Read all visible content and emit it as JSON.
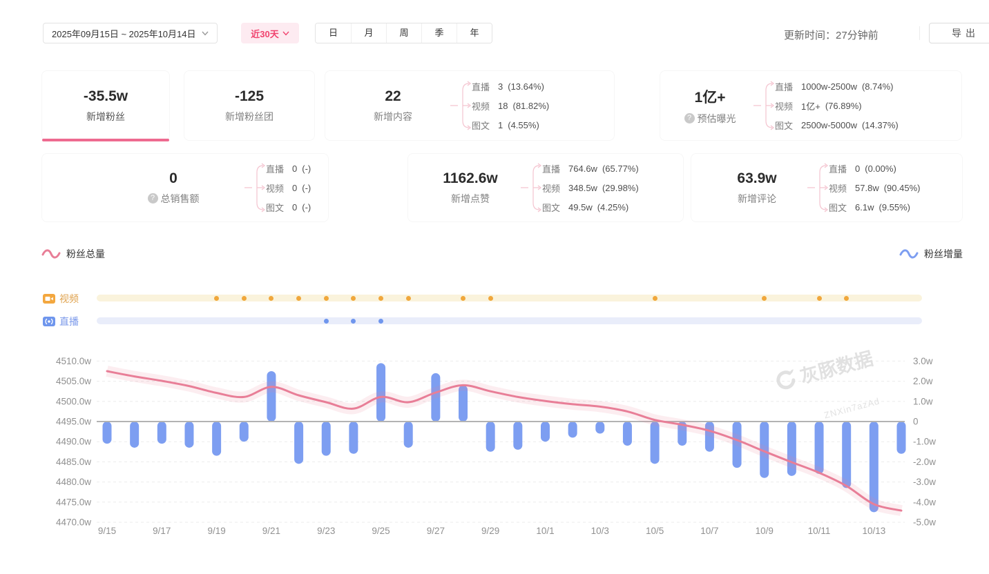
{
  "toolbar": {
    "date_range": "2025年09月15日 ~ 2025年10月14日",
    "quick_range": "近30天",
    "tabs": [
      "日",
      "月",
      "周",
      "季",
      "年"
    ],
    "updated": "更新时间：27分钟前",
    "export": "导出"
  },
  "stats": {
    "fans": {
      "value": "-35.5w",
      "label": "新增粉丝"
    },
    "fanclub": {
      "value": "-125",
      "label": "新增粉丝团"
    },
    "content": {
      "value": "22",
      "label": "新增内容",
      "breakdown": [
        {
          "n": "直播",
          "v": "3",
          "p": "(13.64%)"
        },
        {
          "n": "视频",
          "v": "18",
          "p": "(81.82%)"
        },
        {
          "n": "图文",
          "v": "1",
          "p": "(4.55%)"
        }
      ]
    },
    "exposure": {
      "value": "1亿+",
      "label": "预估曝光",
      "breakdown": [
        {
          "n": "直播",
          "v": "1000w-2500w",
          "p": "(8.74%)"
        },
        {
          "n": "视频",
          "v": "1亿+",
          "p": "(76.89%)"
        },
        {
          "n": "图文",
          "v": "2500w-5000w",
          "p": "(14.37%)"
        }
      ]
    },
    "sales": {
      "value": "0",
      "label": "总销售额",
      "breakdown": [
        {
          "n": "直播",
          "v": "0",
          "p": "(-)"
        },
        {
          "n": "视频",
          "v": "0",
          "p": "(-)"
        },
        {
          "n": "图文",
          "v": "0",
          "p": "(-)"
        }
      ]
    },
    "likes": {
      "value": "1162.6w",
      "label": "新增点赞",
      "breakdown": [
        {
          "n": "直播",
          "v": "764.6w",
          "p": "(65.77%)"
        },
        {
          "n": "视频",
          "v": "348.5w",
          "p": "(29.98%)"
        },
        {
          "n": "图文",
          "v": "49.5w",
          "p": "(4.25%)"
        }
      ]
    },
    "comments": {
      "value": "63.9w",
      "label": "新增评论",
      "breakdown": [
        {
          "n": "直播",
          "v": "0",
          "p": "(0.00%)"
        },
        {
          "n": "视频",
          "v": "57.8w",
          "p": "(90.45%)"
        },
        {
          "n": "图文",
          "v": "6.1w",
          "p": "(9.55%)"
        }
      ]
    }
  },
  "legend": {
    "total": "粉丝总量",
    "delta": "粉丝增量"
  },
  "timeline": {
    "video_label": "视频",
    "live_label": "直播"
  },
  "watermark": {
    "brand": "灰豚数据",
    "code": "ZNXin7azAd"
  },
  "chart_data": {
    "type": "combo",
    "x": [
      "9/15",
      "9/16",
      "9/17",
      "9/18",
      "9/19",
      "9/20",
      "9/21",
      "9/22",
      "9/23",
      "9/24",
      "9/25",
      "9/26",
      "9/27",
      "9/28",
      "9/29",
      "9/30",
      "10/1",
      "10/2",
      "10/3",
      "10/4",
      "10/5",
      "10/6",
      "10/7",
      "10/8",
      "10/9",
      "10/10",
      "10/11",
      "10/12",
      "10/13",
      "10/14"
    ],
    "x_axis_labels": [
      "9/15",
      "9/17",
      "9/19",
      "9/21",
      "9/23",
      "9/25",
      "9/27",
      "9/29",
      "10/1",
      "10/3",
      "10/5",
      "10/7",
      "10/9",
      "10/11",
      "10/13"
    ],
    "left_axis": {
      "title": "粉丝总量",
      "min": 4470,
      "max": 4510,
      "step": 5,
      "unit": "w",
      "labels": [
        "4510.0w",
        "4505.0w",
        "4500.0w",
        "4495.0w",
        "4490.0w",
        "4485.0w",
        "4480.0w",
        "4475.0w",
        "4470.0w"
      ]
    },
    "right_axis": {
      "title": "粉丝增量",
      "min": -5,
      "max": 3,
      "step": 1,
      "unit": "w",
      "labels": [
        "3.0w",
        "2.0w",
        "1.0w",
        "0",
        "-1.0w",
        "-2.0w",
        "-3.0w",
        "-4.0w",
        "-5.0w"
      ]
    },
    "series": [
      {
        "name": "粉丝总量",
        "type": "line",
        "axis": "left",
        "color": "#e87e97",
        "values": [
          4507.5,
          4506.2,
          4505.1,
          4503.8,
          4502.1,
          4501.1,
          4503.6,
          4501.5,
          4499.8,
          4498.2,
          4501.1,
          4499.8,
          4502.2,
          4504.0,
          4502.5,
          4501.1,
          4500.1,
          4499.3,
          4498.7,
          4497.5,
          4495.4,
          4494.2,
          4492.7,
          4490.4,
          4487.6,
          4484.9,
          4482.3,
          4479.0,
          4474.5,
          4472.9
        ]
      },
      {
        "name": "粉丝增量",
        "type": "bar",
        "axis": "right",
        "color": "#7d9ef1",
        "values": [
          -1.1,
          -1.3,
          -1.1,
          -1.3,
          -1.7,
          -1.0,
          2.5,
          -2.1,
          -1.7,
          -1.6,
          2.9,
          -1.3,
          2.4,
          1.8,
          -1.5,
          -1.4,
          -1.0,
          -0.8,
          -0.6,
          -1.2,
          -2.1,
          -1.2,
          -1.5,
          -2.3,
          -2.8,
          -2.7,
          -2.6,
          -3.3,
          -4.5,
          -1.6
        ]
      }
    ],
    "video_marker_day_indices": [
      4,
      5,
      6,
      7,
      8,
      9,
      10,
      11,
      13,
      14,
      20,
      24,
      26,
      27
    ],
    "live_marker_day_indices": [
      8,
      9,
      10
    ],
    "colors": {
      "video_dot": "#f0a73c",
      "video_track": "#faf3dc",
      "live_dot": "#6f96ed",
      "live_track": "#e9edfa",
      "zero_line": "#b3b3b3"
    },
    "grid": "dashed-horizontal",
    "legend_position": "top-left / top-right"
  }
}
